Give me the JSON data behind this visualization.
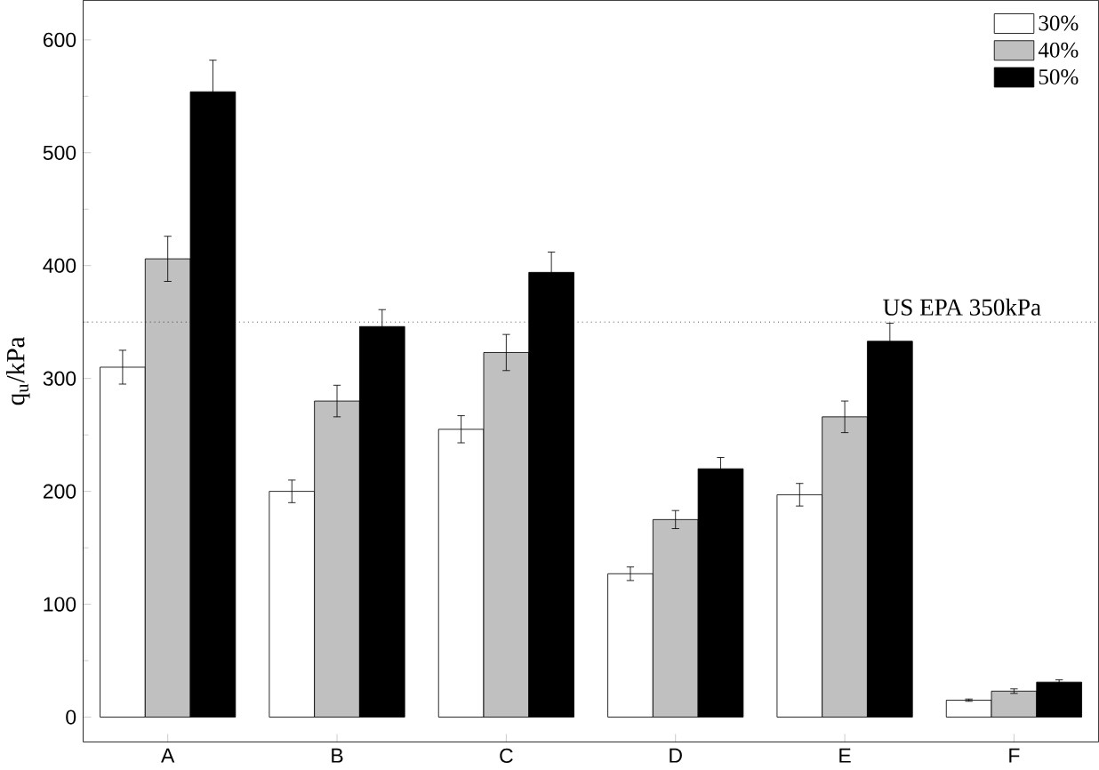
{
  "chart_data": {
    "type": "bar",
    "ylabel": "q$_{u}$/kPa",
    "categories": [
      "A",
      "B",
      "C",
      "D",
      "E",
      "F"
    ],
    "series": [
      {
        "name": "30%",
        "color": "#ffffff",
        "values": [
          310,
          200,
          255,
          127,
          197,
          15
        ],
        "errors": [
          15,
          10,
          12,
          6,
          10,
          1
        ]
      },
      {
        "name": "40%",
        "color": "#c0c0c0",
        "values": [
          406,
          280,
          323,
          175,
          266,
          23
        ],
        "errors": [
          20,
          14,
          16,
          8,
          14,
          2
        ]
      },
      {
        "name": "50%",
        "color": "#000000",
        "values": [
          554,
          346,
          394,
          220,
          333,
          31
        ],
        "errors": [
          28,
          15,
          18,
          10,
          16,
          2
        ]
      }
    ],
    "ylim": [
      -22,
      635
    ],
    "yticks": [
      0,
      100,
      200,
      300,
      400,
      500,
      600
    ],
    "ref_lines": [
      {
        "axis": "y",
        "value": 350,
        "label": "US EPA 350kPa",
        "line_style": "dotted"
      }
    ],
    "legend": "top right",
    "grid": false
  }
}
